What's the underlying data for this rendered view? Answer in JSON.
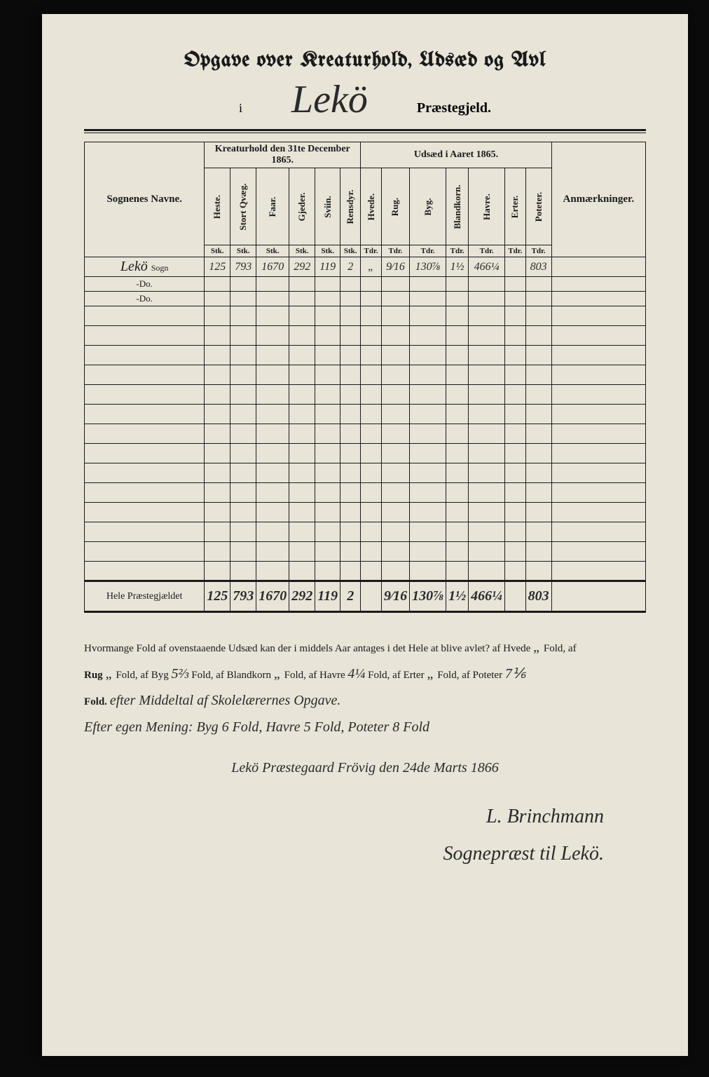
{
  "title": "Opgave over Kreaturhold, Udsæd og Avl",
  "prefix_i": "i",
  "parish_name": "Lekö",
  "suffix": "Præstegjeld.",
  "table": {
    "row_header": "Sognenes Navne.",
    "section1": "Kreaturhold den 31te December 1865.",
    "section2": "Udsæd i Aaret 1865.",
    "annot_header": "Anmærkninger.",
    "cols_livestock": [
      "Heste.",
      "Stort Qvæg.",
      "Faar.",
      "Gjeder.",
      "Sviin.",
      "Rensdyr."
    ],
    "cols_seed": [
      "Hvede.",
      "Rug.",
      "Byg.",
      "Blandkorn.",
      "Havre.",
      "Erter.",
      "Poteter."
    ],
    "unit_livestock": "Stk.",
    "unit_seed": "Tdr.",
    "rows": [
      {
        "name": "Lekö",
        "suffix": "Sogn",
        "hand": true,
        "vals": [
          "125",
          "793",
          "1670",
          "292",
          "119",
          "2",
          "„",
          "9⁄16",
          "130⅞",
          "1½",
          "466¼",
          "",
          "803"
        ]
      },
      {
        "name": "-Do.",
        "suffix": "",
        "hand": false,
        "vals": [
          "",
          "",
          "",
          "",
          "",
          "",
          "",
          "",
          "",
          "",
          "",
          "",
          ""
        ]
      },
      {
        "name": "-Do.",
        "suffix": "",
        "hand": false,
        "vals": [
          "",
          "",
          "",
          "",
          "",
          "",
          "",
          "",
          "",
          "",
          "",
          "",
          ""
        ]
      }
    ],
    "blank_rows": 14,
    "total_label": "Hele Præstegjældet",
    "total_vals": [
      "125",
      "793",
      "1670",
      "292",
      "119",
      "2",
      "",
      "9⁄16",
      "130⅞",
      "1½",
      "466¼",
      "",
      "803"
    ]
  },
  "footer": {
    "line1_pre": "Hvormange Fold af ovenstaaende Udsæd kan der i middels Aar antages i det Hele at blive avlet? af Hvede",
    "hvede": "„",
    "line1_post": "Fold, af",
    "line2_rug_lbl": "Rug",
    "rug": "„",
    "byg_lbl": "Fold, af Byg",
    "byg": "5⅔",
    "bland_lbl": "Fold, af Blandkorn",
    "bland": "„",
    "havre_lbl": "Fold, af Havre",
    "havre": "4¼",
    "erter_lbl": "Fold, af Erter",
    "erter": "„",
    "poteter_lbl": "Fold, af Poteter",
    "poteter": "7⅙",
    "fold_end": "Fold.",
    "hand_note1": "efter Middeltal af Skolelærernes Opgave.",
    "hand_note2": "Efter egen Mening: Byg 6 Fold, Havre 5 Fold, Poteter 8 Fold",
    "place_date": "Lekö Præstegaard Frövig den 24de Marts 1866",
    "signature": "L. Brinchmann",
    "sig_title": "Sognepræst til Lekö."
  }
}
